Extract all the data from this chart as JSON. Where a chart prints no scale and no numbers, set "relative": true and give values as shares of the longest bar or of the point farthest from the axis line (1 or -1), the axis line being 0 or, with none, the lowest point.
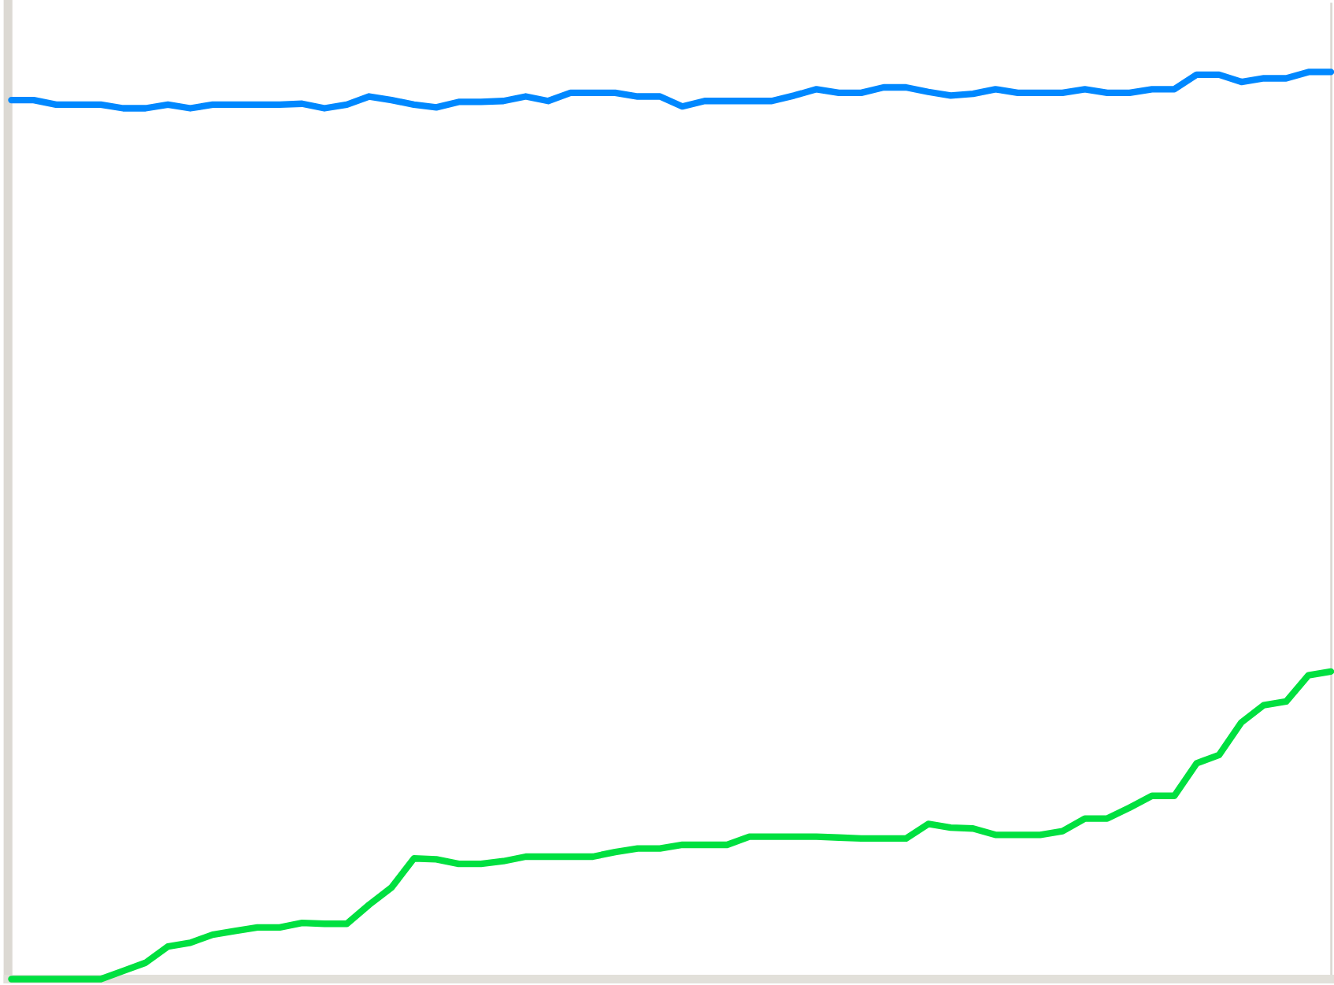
{
  "chart_data": {
    "type": "line",
    "relative": true,
    "grid": false,
    "legend": false,
    "marker": "none",
    "line_style": "solid",
    "categories": [
      null,
      null,
      null,
      null,
      null,
      null,
      null,
      null,
      null,
      null,
      null,
      null,
      null,
      null,
      null,
      null,
      null,
      null,
      null,
      null,
      null,
      null,
      null,
      null,
      null,
      null,
      null,
      null,
      null,
      null,
      null,
      null,
      null,
      null,
      null,
      null,
      null,
      null,
      null,
      null,
      null,
      null,
      null,
      null,
      null,
      null,
      null,
      null,
      null,
      null,
      null,
      null,
      null,
      null,
      null,
      null,
      null,
      null,
      null,
      null
    ],
    "series": [
      {
        "color": "#0088ff",
        "values": [
          0.969,
          0.969,
          0.964,
          0.964,
          0.964,
          0.96,
          0.96,
          0.964,
          0.96,
          0.964,
          0.964,
          0.964,
          0.964,
          0.965,
          0.96,
          0.964,
          0.973,
          0.969,
          0.964,
          0.961,
          0.967,
          0.967,
          0.968,
          0.973,
          0.968,
          0.977,
          0.977,
          0.977,
          0.973,
          0.973,
          0.962,
          0.968,
          0.968,
          0.968,
          0.968,
          0.974,
          0.981,
          0.977,
          0.977,
          0.983,
          0.983,
          0.978,
          0.974,
          0.976,
          0.981,
          0.977,
          0.977,
          0.977,
          0.981,
          0.977,
          0.977,
          0.981,
          0.981,
          0.997,
          0.997,
          0.989,
          0.993,
          0.993,
          1,
          1
        ]
      },
      {
        "color": "#00e040",
        "values": [
          0,
          0,
          0,
          0,
          0,
          0.009,
          0.018,
          0.036,
          0.04,
          0.049,
          0.053,
          0.057,
          0.057,
          0.062,
          0.061,
          0.061,
          0.082,
          0.101,
          0.133,
          0.132,
          0.127,
          0.127,
          0.13,
          0.135,
          0.135,
          0.135,
          0.135,
          0.14,
          0.144,
          0.144,
          0.148,
          0.148,
          0.148,
          0.157,
          0.157,
          0.157,
          0.157,
          0.156,
          0.155,
          0.155,
          0.155,
          0.171,
          0.167,
          0.166,
          0.159,
          0.159,
          0.159,
          0.163,
          0.177,
          0.177,
          0.189,
          0.202,
          0.202,
          0.238,
          0.247,
          0.283,
          0.302,
          0.306,
          0.335,
          0.339
        ]
      }
    ]
  }
}
